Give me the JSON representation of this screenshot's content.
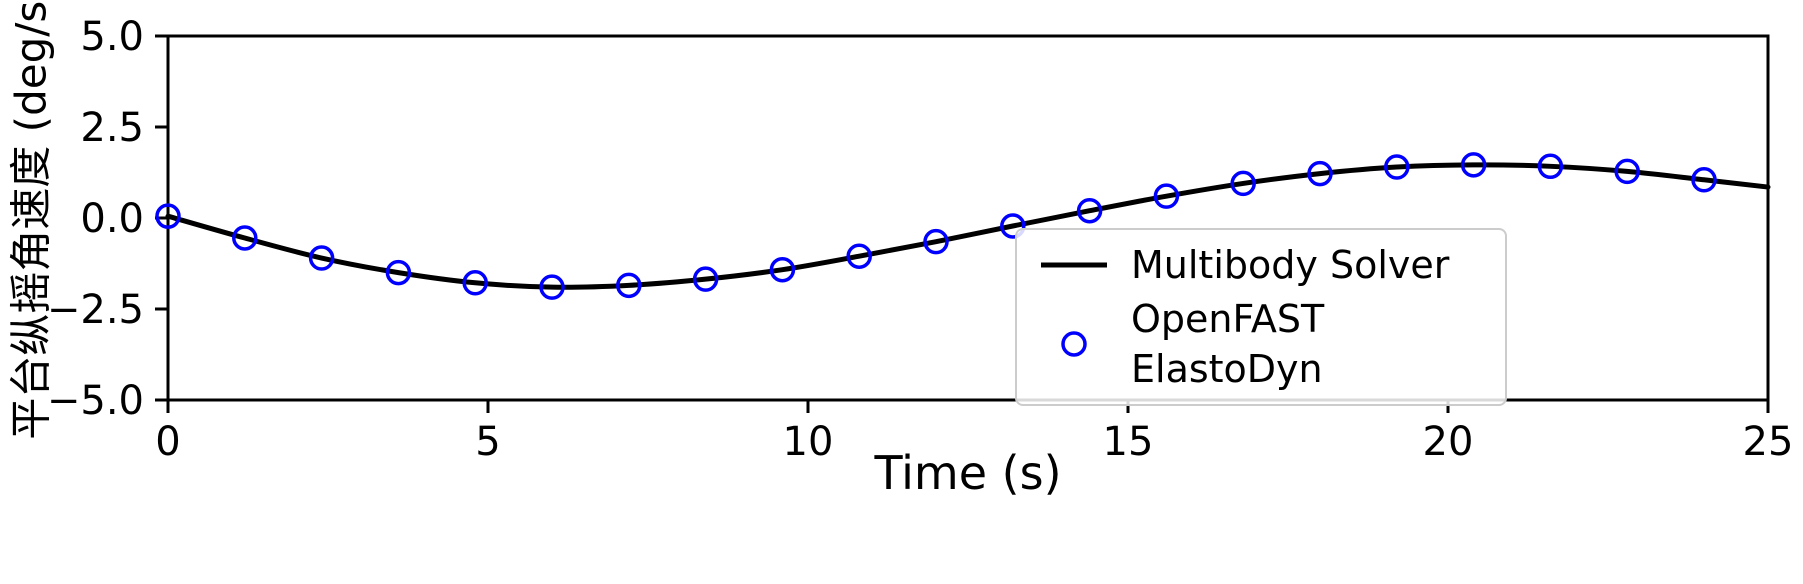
{
  "chart_data": {
    "type": "line",
    "title": "",
    "xlabel": "Time (s)",
    "ylabel": "平台纵摇角速度 (deg/s)",
    "xlim": [
      0,
      25
    ],
    "ylim": [
      -5,
      5
    ],
    "grid": false,
    "legend_position": "lower right inside axes",
    "xticks": [
      0,
      5,
      10,
      15,
      20,
      25
    ],
    "xtick_labels": [
      "0",
      "5",
      "10",
      "15",
      "20",
      "25"
    ],
    "yticks": [
      5.0,
      2.5,
      0.0,
      -2.5,
      -5.0
    ],
    "ytick_labels": [
      "5.0",
      "2.5",
      "0.0",
      "−2.5",
      "−5.0"
    ],
    "colors": {
      "line": "#000000",
      "marker": "#0000ff",
      "axes": "#000000",
      "legend_border": "#cccccc"
    },
    "series": [
      {
        "name": "Multibody Solver",
        "type": "line",
        "color": "#000000",
        "x": [
          0,
          1.2,
          2.4,
          3.6,
          4.8,
          6.0,
          7.2,
          8.4,
          9.6,
          10.8,
          12.0,
          13.2,
          14.4,
          15.6,
          16.8,
          18.0,
          19.2,
          20.4,
          21.6,
          22.8,
          24.0,
          25.0
        ],
        "y": [
          0.05,
          -0.55,
          -1.1,
          -1.5,
          -1.78,
          -1.9,
          -1.85,
          -1.68,
          -1.42,
          -1.05,
          -0.65,
          -0.22,
          0.2,
          0.6,
          0.95,
          1.22,
          1.4,
          1.46,
          1.42,
          1.28,
          1.05,
          0.85
        ]
      },
      {
        "name": "OpenFAST ElastoDyn",
        "type": "scatter",
        "marker": "open-circle",
        "color": "#0000ff",
        "x": [
          0,
          1.2,
          2.4,
          3.6,
          4.8,
          6.0,
          7.2,
          8.4,
          9.6,
          10.8,
          12.0,
          13.2,
          14.4,
          15.6,
          16.8,
          18.0,
          19.2,
          20.4,
          21.6,
          22.8,
          24.0
        ],
        "y": [
          0.05,
          -0.55,
          -1.1,
          -1.5,
          -1.78,
          -1.9,
          -1.85,
          -1.68,
          -1.42,
          -1.05,
          -0.65,
          -0.22,
          0.2,
          0.6,
          0.95,
          1.22,
          1.4,
          1.46,
          1.42,
          1.28,
          1.05
        ]
      }
    ]
  }
}
